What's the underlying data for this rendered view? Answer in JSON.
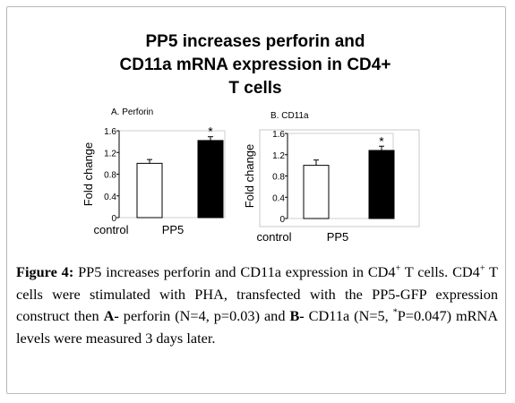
{
  "title_lines": [
    "PP5 increases perforin and",
    "CD11a mRNA expression in CD4+",
    "T cells"
  ],
  "chart_data": [
    {
      "type": "bar",
      "panel_label": "A. Perforin",
      "ylabel": "Fold change",
      "categories": [
        "control",
        "PP5"
      ],
      "values": [
        1.0,
        1.42
      ],
      "errors": [
        0.07,
        0.07
      ],
      "significance": [
        "",
        "*"
      ],
      "yticks": [
        "0",
        "0.4",
        "0.8",
        "1.2",
        "1.6"
      ],
      "ylim": [
        0,
        1.6
      ],
      "bar_colors": [
        "#ffffff",
        "#000000"
      ],
      "grid": false,
      "legend": "none"
    },
    {
      "type": "bar",
      "panel_label": "B. CD11a",
      "ylabel": "Fold change",
      "categories": [
        "control",
        "PP5"
      ],
      "values": [
        1.0,
        1.28
      ],
      "errors": [
        0.1,
        0.08
      ],
      "significance": [
        "",
        "*"
      ],
      "yticks": [
        "0",
        "0.4",
        "0.8",
        "1.2",
        "1.6"
      ],
      "ylim": [
        0,
        1.6
      ],
      "bar_colors": [
        "#ffffff",
        "#000000"
      ],
      "grid": false,
      "legend": "none"
    }
  ],
  "caption": {
    "label": "Figure 4:",
    "text_1": " PP5 increases perforin and CD11a expression in CD4",
    "sup_1": "+",
    "text_2": " T cells. CD4",
    "sup_2": "+",
    "text_3": " T cells were stimulated with PHA, transfected with the PP5-GFP expression construct then ",
    "bold_a": "A-",
    "text_4": " perforin (N=4, p=0.03) and ",
    "bold_b": "B-",
    "text_5": " CD11a (N=5, ",
    "sup_3": "*",
    "text_6": "P=0.047) mRNA levels were measured 3 days later."
  }
}
